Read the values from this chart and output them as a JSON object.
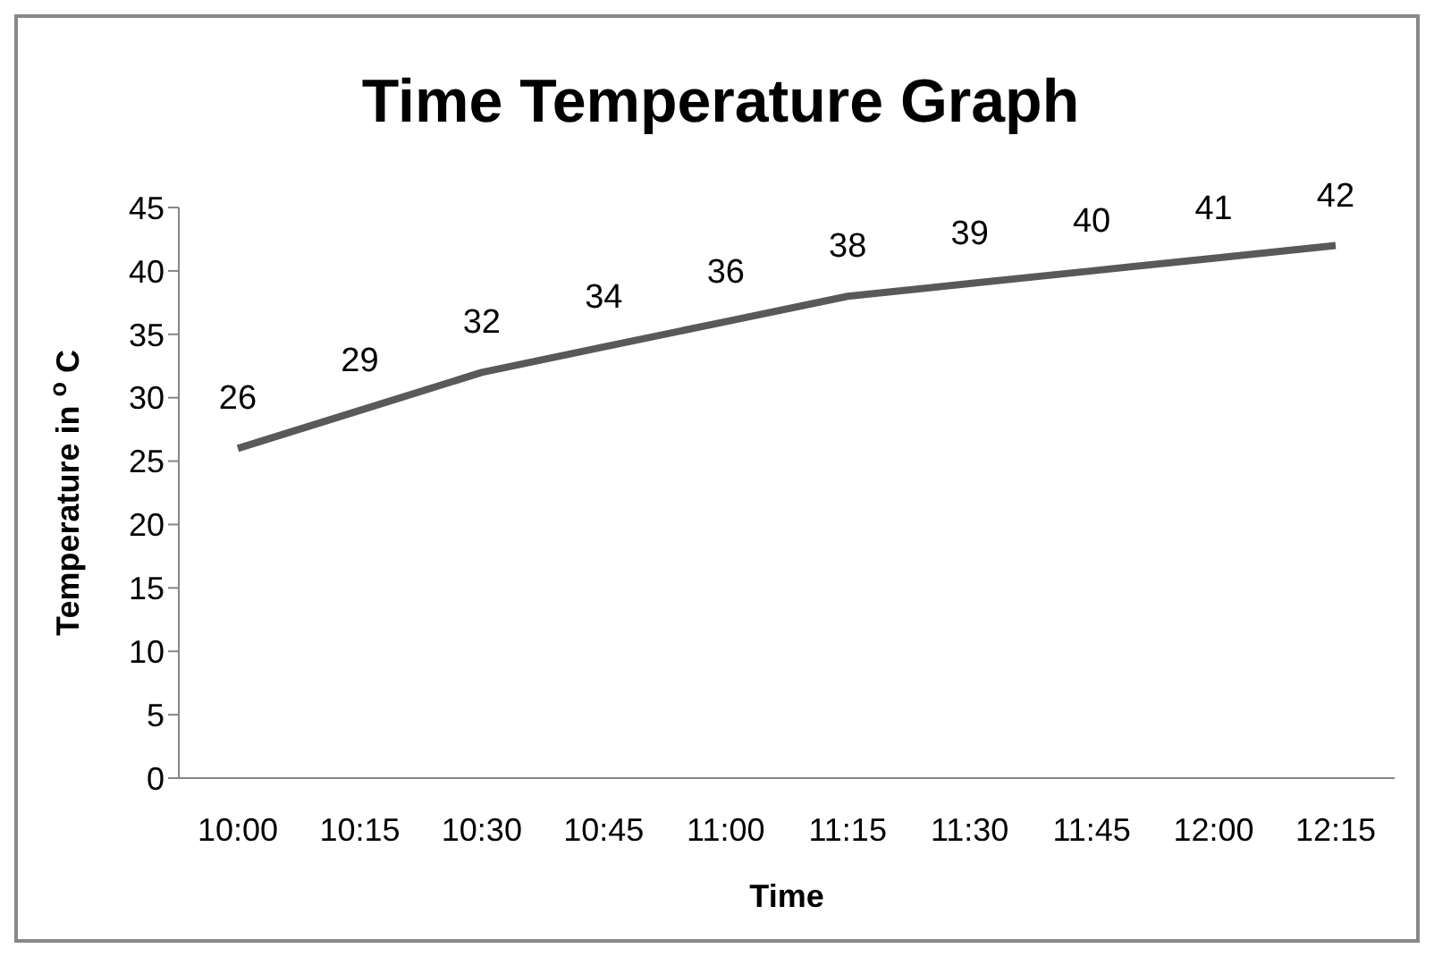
{
  "chart_data": {
    "type": "line",
    "title": "Time Temperature Graph",
    "xlabel": "Time",
    "ylabel": "Temperature in $^{o}$ C",
    "categories": [
      "10:00",
      "10:15",
      "10:30",
      "10:45",
      "11:00",
      "11:15",
      "11:30",
      "11:45",
      "12:00",
      "12:15"
    ],
    "values": [
      26,
      29,
      32,
      34,
      36,
      38,
      39,
      40,
      41,
      42
    ],
    "color": "#595959",
    "ylim": [
      0,
      45
    ],
    "yticks": [
      0,
      5,
      10,
      15,
      20,
      25,
      30,
      35,
      40,
      45
    ],
    "data_labels": true,
    "grid": false,
    "legend": false
  }
}
